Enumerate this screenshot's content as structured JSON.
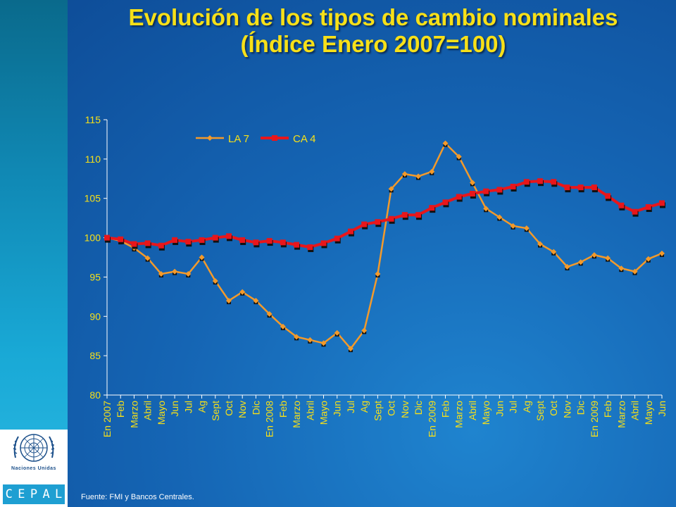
{
  "title": {
    "line1": "Evolución de los tipos de cambio nominales",
    "line2": "(Índice Enero 2007=100)"
  },
  "logo": {
    "org_label": "Naciones Unidas",
    "brand_letters": [
      "C",
      "E",
      "P",
      "A",
      "L"
    ]
  },
  "source": "Fuente: FMI y Bancos Centrales.",
  "colors": {
    "title": "#f7e018",
    "axis_text": "#f7e018",
    "la7_line": "#f39a2b",
    "ca4_line": "#e8161b"
  },
  "chart_data": {
    "type": "line",
    "title": "",
    "xlabel": "",
    "ylabel": "",
    "ylim": [
      80,
      115
    ],
    "yticks": [
      80,
      85,
      90,
      95,
      100,
      105,
      110,
      115
    ],
    "grid": false,
    "legend_position": "top-left",
    "categories": [
      "En 2007",
      "Feb",
      "Marzo",
      "Abril",
      "Mayo",
      "Jun",
      "Jul",
      "Ag",
      "Sept",
      "Oct",
      "Nov",
      "Dic",
      "En 2008",
      "Feb",
      "Marzo",
      "Abril",
      "Mayo",
      "Jun",
      "Jul",
      "Ag",
      "Sept",
      "Oct",
      "Nov",
      "Dic",
      "En 2009",
      "Feb",
      "Marzo",
      "Abril",
      "Mayo",
      "Jun",
      "Jul",
      "Ag",
      "Sept",
      "Oct",
      "Nov",
      "Dic",
      "En 2009",
      "Feb",
      "Marzo",
      "Abril",
      "Mayo",
      "Jun"
    ],
    "series": [
      {
        "name": "LA 7",
        "values": [
          100.0,
          99.6,
          98.7,
          97.4,
          95.4,
          95.7,
          95.4,
          97.5,
          94.5,
          92.0,
          93.1,
          92.0,
          90.3,
          88.7,
          87.4,
          87.0,
          86.6,
          87.9,
          85.9,
          88.2,
          95.4,
          106.2,
          108.1,
          107.8,
          108.4,
          112.0,
          110.3,
          107.0,
          103.7,
          102.6,
          101.5,
          101.2,
          99.2,
          98.2,
          96.3,
          96.9,
          97.8,
          97.4,
          96.1,
          95.7,
          97.3,
          98.0
        ]
      },
      {
        "name": "CA 4",
        "values": [
          100.0,
          99.8,
          99.2,
          99.3,
          99.0,
          99.7,
          99.5,
          99.7,
          100.0,
          100.2,
          99.7,
          99.4,
          99.6,
          99.4,
          99.1,
          98.8,
          99.3,
          99.9,
          100.8,
          101.7,
          102.0,
          102.4,
          102.9,
          102.9,
          103.8,
          104.5,
          105.2,
          105.6,
          105.9,
          106.1,
          106.5,
          107.1,
          107.2,
          107.1,
          106.4,
          106.4,
          106.4,
          105.3,
          104.1,
          103.3,
          103.9,
          104.4
        ]
      }
    ]
  }
}
